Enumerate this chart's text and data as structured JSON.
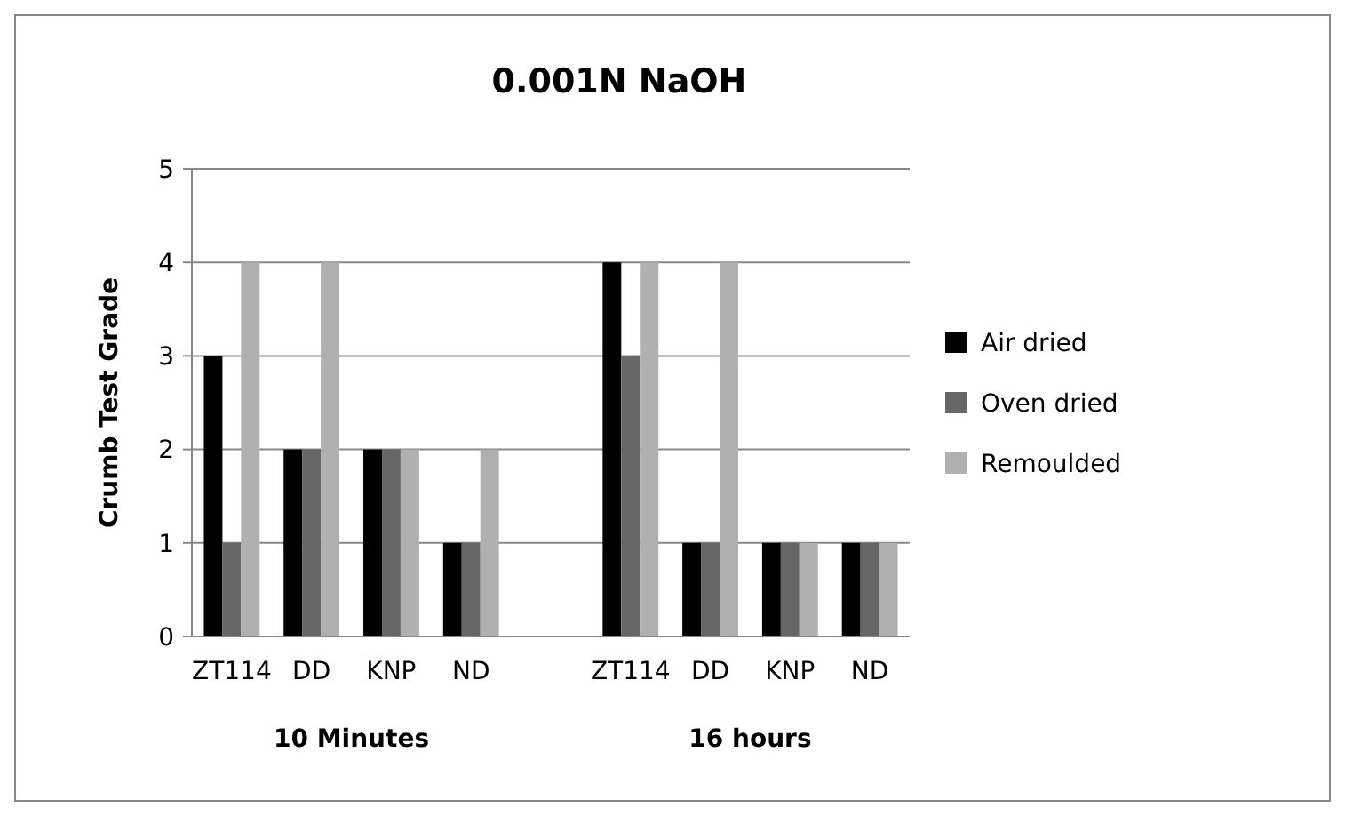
{
  "chart_data": {
    "type": "bar",
    "title": "0.001N NaOH",
    "ylabel": "Crumb Test Grade",
    "categories": [
      "ZT114",
      "DD",
      "KNP",
      "ND",
      null,
      "ZT114",
      "DD",
      "KNP",
      "ND"
    ],
    "series": [
      {
        "name": "Air dried",
        "color": "#000000",
        "values": [
          3,
          2,
          2,
          1,
          null,
          4,
          1,
          1,
          1
        ]
      },
      {
        "name": "Oven dried",
        "color": "#666666",
        "values": [
          1,
          2,
          2,
          1,
          null,
          3,
          1,
          1,
          1
        ]
      },
      {
        "name": "Remoulded",
        "color": "#b0b0b0",
        "values": [
          4,
          4,
          2,
          2,
          null,
          4,
          4,
          1,
          1
        ]
      }
    ],
    "ylim": [
      0,
      5
    ],
    "yticks": [
      0,
      1,
      2,
      3,
      4,
      5
    ],
    "grid": "y",
    "legend": "right",
    "annotations": [
      "10 Minutes",
      "16 hours"
    ]
  }
}
